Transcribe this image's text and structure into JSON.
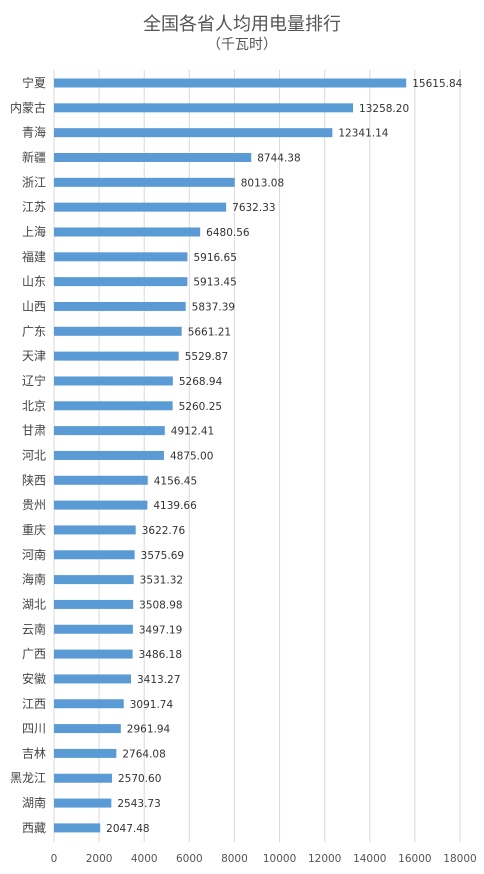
{
  "chart_data": {
    "type": "bar",
    "orientation": "horizontal",
    "title": "全国各省人均用电量排行",
    "subtitle": "（千瓦时）",
    "categories": [
      "宁夏",
      "内蒙古",
      "青海",
      "新疆",
      "浙江",
      "江苏",
      "上海",
      "福建",
      "山东",
      "山西",
      "广东",
      "天津",
      "辽宁",
      "北京",
      "甘肃",
      "河北",
      "陕西",
      "贵州",
      "重庆",
      "河南",
      "海南",
      "湖北",
      "云南",
      "广西",
      "安徽",
      "江西",
      "四川",
      "吉林",
      "黑龙江",
      "湖南",
      "西藏"
    ],
    "values": [
      15615.84,
      13258.2,
      12341.14,
      8744.38,
      8013.08,
      7632.33,
      6480.56,
      5916.65,
      5913.45,
      5837.39,
      5661.21,
      5529.87,
      5268.94,
      5260.25,
      4912.41,
      4875.0,
      4156.45,
      4139.66,
      3622.76,
      3575.69,
      3531.32,
      3508.98,
      3497.19,
      3486.18,
      3413.27,
      3091.74,
      2961.94,
      2764.08,
      2570.6,
      2543.73,
      2047.48
    ],
    "value_labels": [
      "15615.84",
      "13258.20",
      "12341.14",
      "8744.38",
      "8013.08",
      "7632.33",
      "6480.56",
      "5916.65",
      "5913.45",
      "5837.39",
      "5661.21",
      "5529.87",
      "5268.94",
      "5260.25",
      "4912.41",
      "4875.00",
      "4156.45",
      "4139.66",
      "3622.76",
      "3575.69",
      "3531.32",
      "3508.98",
      "3497.19",
      "3486.18",
      "3413.27",
      "3091.74",
      "2961.94",
      "2764.08",
      "2570.60",
      "2543.73",
      "2047.48"
    ],
    "xlim": [
      0,
      18000
    ],
    "xticks": [
      0,
      2000,
      4000,
      6000,
      8000,
      10000,
      12000,
      14000,
      16000,
      18000
    ],
    "grid": true,
    "legend": "none",
    "colors": {
      "bar": "#5b9bd5",
      "grid": "#d9d9d9"
    }
  }
}
